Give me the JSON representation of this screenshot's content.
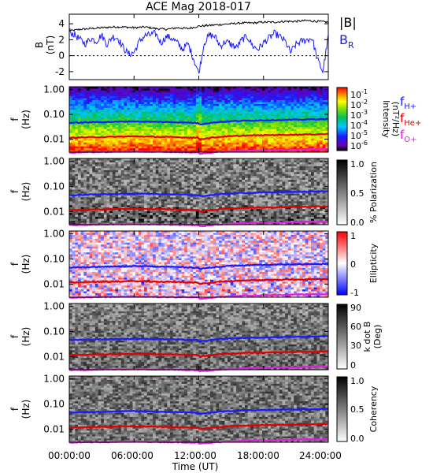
{
  "chart_data": {
    "title": "ACE Mag 2018-017",
    "x_axis": {
      "label": "Time (UT)",
      "ticks": [
        "00:00:00",
        "06:00:00",
        "12:00:00",
        "18:00:00",
        "24:00:00"
      ],
      "range_hours": [
        0,
        24
      ]
    },
    "panels": [
      {
        "type": "line",
        "ylabel": [
          "B",
          "(nT)"
        ],
        "ylim": [
          -3,
          5.2
        ],
        "yticks": [
          "4",
          "2",
          "0",
          "-2"
        ],
        "legend": [
          {
            "name": "|B|",
            "color": "#000000"
          },
          {
            "name": "B_R",
            "main": "B",
            "sub": "R",
            "color": "#1a1aff"
          }
        ],
        "series": [
          {
            "name": "|B|",
            "color": "#000000",
            "x": [
              0,
              1,
              2,
              3,
              4,
              5,
              6,
              7,
              8,
              9,
              10,
              11,
              12,
              13,
              14,
              15,
              16,
              17,
              18,
              19,
              20,
              21,
              22,
              23,
              24
            ],
            "y": [
              3.1,
              3.3,
              3.4,
              3.5,
              3.6,
              3.6,
              3.5,
              3.6,
              3.4,
              3.3,
              3.5,
              3.4,
              3.7,
              3.8,
              3.9,
              4.0,
              4.1,
              4.1,
              4.2,
              4.2,
              4.3,
              4.3,
              4.4,
              4.3,
              4.2
            ]
          },
          {
            "name": "B_R",
            "color": "#1a1aff",
            "x": [
              0,
              0.5,
              1,
              1.5,
              2,
              2.5,
              3,
              3.5,
              4,
              4.5,
              5,
              5.5,
              6,
              6.5,
              7,
              7.5,
              8,
              8.5,
              9,
              9.5,
              10,
              10.5,
              11,
              11.5,
              12,
              12.5,
              13,
              13.5,
              14,
              14.5,
              15,
              15.5,
              16,
              16.5,
              17,
              17.5,
              18,
              18.5,
              19,
              19.5,
              20,
              20.5,
              21,
              21.5,
              22,
              22.5,
              23,
              23.5,
              24
            ],
            "y": [
              3.0,
              2.6,
              2.0,
              1.5,
              2.2,
              1.8,
              2.6,
              1.4,
              2.4,
              2.2,
              1.0,
              0.2,
              0.4,
              1.8,
              2.5,
              2.6,
              2.8,
              1.6,
              2.4,
              2.2,
              1.6,
              0.8,
              1.5,
              -0.3,
              -2.2,
              1.6,
              2.6,
              2.4,
              1.2,
              1.8,
              1.4,
              1.0,
              2.0,
              2.4,
              1.2,
              0.8,
              1.6,
              2.2,
              2.8,
              2.4,
              1.8,
              0.4,
              1.4,
              1.8,
              2.0,
              2.2,
              -0.5,
              -2.0,
              2.4
            ]
          }
        ]
      },
      {
        "type": "heatmap",
        "ylabel": [
          "f",
          "(Hz)"
        ],
        "yscale": "log",
        "ylim": [
          0.003,
          1.3
        ],
        "yticks": [
          "1.00",
          "0.10",
          "0.01"
        ],
        "colorbar": {
          "label": "Intensity (nT²/Hz)",
          "label_main": "Intensity",
          "label_units": "(nT²/Hz)",
          "ticks": [
            {
              "main": "10",
              "exp": "-1"
            },
            {
              "main": "10",
              "exp": "-2"
            },
            {
              "main": "10",
              "exp": "-3"
            },
            {
              "main": "10",
              "exp": "-4"
            },
            {
              "main": "10",
              "exp": "-5"
            },
            {
              "main": "10",
              "exp": "-6"
            }
          ]
        },
        "legend": [
          {
            "main": "f",
            "sub": "H+",
            "color": "#1a1aff"
          },
          {
            "main": "f",
            "sub": "He+",
            "color": "#e00000"
          },
          {
            "main": "f",
            "sub": "O+",
            "color": "#e020e0"
          }
        ]
      },
      {
        "type": "heatmap",
        "ylabel": [
          "f",
          "(Hz)"
        ],
        "yscale": "log",
        "yticks": [
          "1.00",
          "0.10",
          "0.01"
        ],
        "colorbar": {
          "label": "% Polarization",
          "ticks": [
            "1.0",
            "0.5",
            "0.0"
          ]
        }
      },
      {
        "type": "heatmap",
        "ylabel": [
          "f",
          "(Hz)"
        ],
        "yscale": "log",
        "yticks": [
          "1.00",
          "0.10",
          "0.01"
        ],
        "colorbar": {
          "label": "Ellipticity",
          "ticks": [
            "1",
            "0",
            "-1"
          ]
        }
      },
      {
        "type": "heatmap",
        "ylabel": [
          "f",
          "(Hz)"
        ],
        "yscale": "log",
        "yticks": [
          "1.00",
          "0.10",
          "0.01"
        ],
        "colorbar": {
          "label": "k dot B (Deg)",
          "label_main": "k dot B",
          "label_units": "(Deg)",
          "ticks": [
            "90",
            "60",
            "30",
            "0"
          ]
        }
      },
      {
        "type": "heatmap",
        "ylabel": [
          "f",
          "(Hz)"
        ],
        "yscale": "log",
        "yticks": [
          "1.00",
          "0.10",
          "0.01"
        ],
        "colorbar": {
          "label": "Coherency",
          "ticks": [
            "1.0",
            "0.5",
            "0.0"
          ]
        }
      }
    ],
    "gyro_lines": {
      "x_hours": [
        0,
        2,
        4,
        6,
        8,
        10,
        11.9,
        12.1,
        14,
        16,
        18,
        20,
        22,
        24
      ],
      "f_H+": [
        0.045,
        0.048,
        0.05,
        0.052,
        0.05,
        0.048,
        0.045,
        0.04,
        0.05,
        0.055,
        0.058,
        0.06,
        0.062,
        0.065
      ],
      "f_He+": [
        0.0115,
        0.012,
        0.0125,
        0.013,
        0.0125,
        0.012,
        0.0115,
        0.01,
        0.0125,
        0.0138,
        0.0145,
        0.015,
        0.0155,
        0.0162
      ],
      "f_O+": [
        0.0029,
        0.003,
        0.0031,
        0.0032,
        0.0031,
        0.003,
        0.0029,
        0.0026,
        0.0031,
        0.0034,
        0.0036,
        0.0037,
        0.0039,
        0.004
      ]
    }
  }
}
